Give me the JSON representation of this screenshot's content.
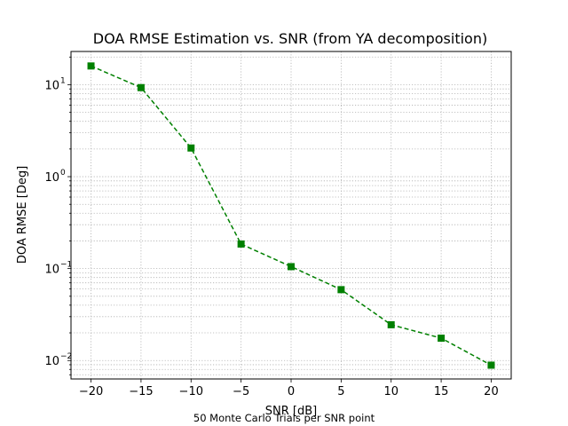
{
  "chart_data": {
    "type": "line",
    "title": "DOA RMSE Estimation vs. SNR (from YA decomposition)",
    "xlabel": "SNR [dB]",
    "ylabel": "DOA RMSE [Deg]",
    "footnote": "50 Monte Carlo Trials per SNR point",
    "x": [
      -20,
      -15,
      -10,
      -5,
      0,
      5,
      10,
      15,
      20
    ],
    "series": [
      {
        "values": [
          16.0,
          9.3,
          2.05,
          0.185,
          0.105,
          0.059,
          0.0245,
          0.0175,
          0.0089
        ],
        "color": "#008000",
        "line_style": "dashed",
        "marker": "square"
      }
    ],
    "xlim": [
      -22,
      22
    ],
    "ylim": [
      0.0063,
      23
    ],
    "yscale": "log",
    "x_ticks": [
      -20,
      -15,
      -10,
      -5,
      0,
      5,
      10,
      15,
      20
    ],
    "x_tick_labels": [
      "−20",
      "−15",
      "−10",
      "−5",
      "0",
      "5",
      "10",
      "15",
      "20"
    ],
    "y_ticks": [
      0.01,
      0.1,
      1,
      10
    ],
    "y_tick_labels": [
      "10",
      "10",
      "10",
      "10"
    ],
    "y_tick_exponents": [
      "−2",
      "−1",
      "0",
      "1"
    ],
    "grid": true,
    "grid_style": "dotted",
    "grid_minor": true
  }
}
